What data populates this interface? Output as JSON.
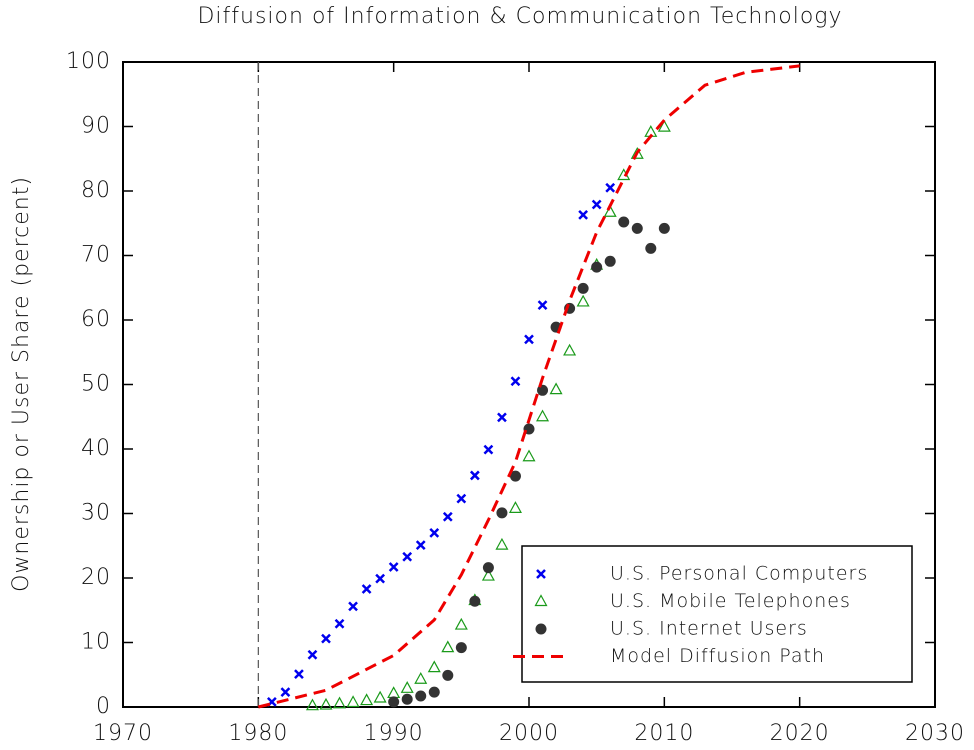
{
  "chart_data": {
    "type": "scatter",
    "title": "Diffusion of Information & Communication Technology",
    "y_label": "Ownership or User Share (percent)",
    "xlim": [
      1970,
      2030
    ],
    "xticks": [
      1970,
      1980,
      1990,
      2000,
      2010,
      2020,
      2030
    ],
    "ylim": [
      0,
      100
    ],
    "yticks": [
      0,
      10,
      20,
      30,
      40,
      50,
      60,
      70,
      80,
      90,
      100
    ],
    "vline": 1980,
    "legend": "lower right",
    "series": [
      {
        "name": "U.S. Personal Computers",
        "marker": "x",
        "color": "#0000ee",
        "x": [
          1981,
          1982,
          1983,
          1984,
          1985,
          1986,
          1987,
          1988,
          1989,
          1990,
          1991,
          1992,
          1993,
          1994,
          1995,
          1996,
          1997,
          1998,
          1999,
          2000,
          2001,
          2004,
          2005,
          2006
        ],
        "values": [
          0.8,
          2.3,
          5.1,
          8.1,
          10.6,
          12.9,
          15.6,
          18.3,
          19.9,
          21.7,
          23.3,
          25.1,
          27,
          29.5,
          32.3,
          35.9,
          39.9,
          44.9,
          50.5,
          57,
          62.3,
          76.3,
          77.9,
          80.5
        ]
      },
      {
        "name": "U.S. Mobile Telephones",
        "marker": "triangle",
        "color": "#1a9a1a",
        "x": [
          1984,
          1985,
          1986,
          1987,
          1988,
          1989,
          1990,
          1991,
          1992,
          1993,
          1994,
          1995,
          1996,
          1997,
          1998,
          1999,
          2000,
          2001,
          2002,
          2003,
          2004,
          2005,
          2006,
          2007,
          2008,
          2009,
          2010
        ],
        "values": [
          0.2,
          0.3,
          0.5,
          0.7,
          1.0,
          1.4,
          2.1,
          2.9,
          4.3,
          6.1,
          9.2,
          12.7,
          16.5,
          20.3,
          25.1,
          30.8,
          38.8,
          45.0,
          49.2,
          55.2,
          62.8,
          68.5,
          76.7,
          82.4,
          85.7,
          89.1,
          89.9
        ]
      },
      {
        "name": "U.S. Internet Users",
        "marker": "circle",
        "color": "#333333",
        "x": [
          1990,
          1991,
          1992,
          1993,
          1994,
          1995,
          1996,
          1997,
          1998,
          1999,
          2000,
          2001,
          2002,
          2003,
          2004,
          2005,
          2006,
          2007,
          2008,
          2009,
          2010
        ],
        "values": [
          0.8,
          1.2,
          1.7,
          2.3,
          4.9,
          9.2,
          16.4,
          21.6,
          30.1,
          35.8,
          43.1,
          49.1,
          58.9,
          61.8,
          64.9,
          68.2,
          69.1,
          75.2,
          74.2,
          71.1,
          74.2
        ]
      },
      {
        "name": "Model Diffusion Path",
        "marker": "dashed-line",
        "color": "#ee0000",
        "x": [
          1980,
          1985,
          1990,
          1993,
          1995,
          1997,
          1999,
          2001,
          2003,
          2005,
          2008,
          2010,
          2013,
          2016,
          2020
        ],
        "values": [
          0,
          2.6,
          8,
          13.5,
          20.5,
          29,
          38,
          51,
          63,
          73.6,
          86,
          91,
          96.4,
          98.4,
          99.4
        ]
      }
    ]
  }
}
